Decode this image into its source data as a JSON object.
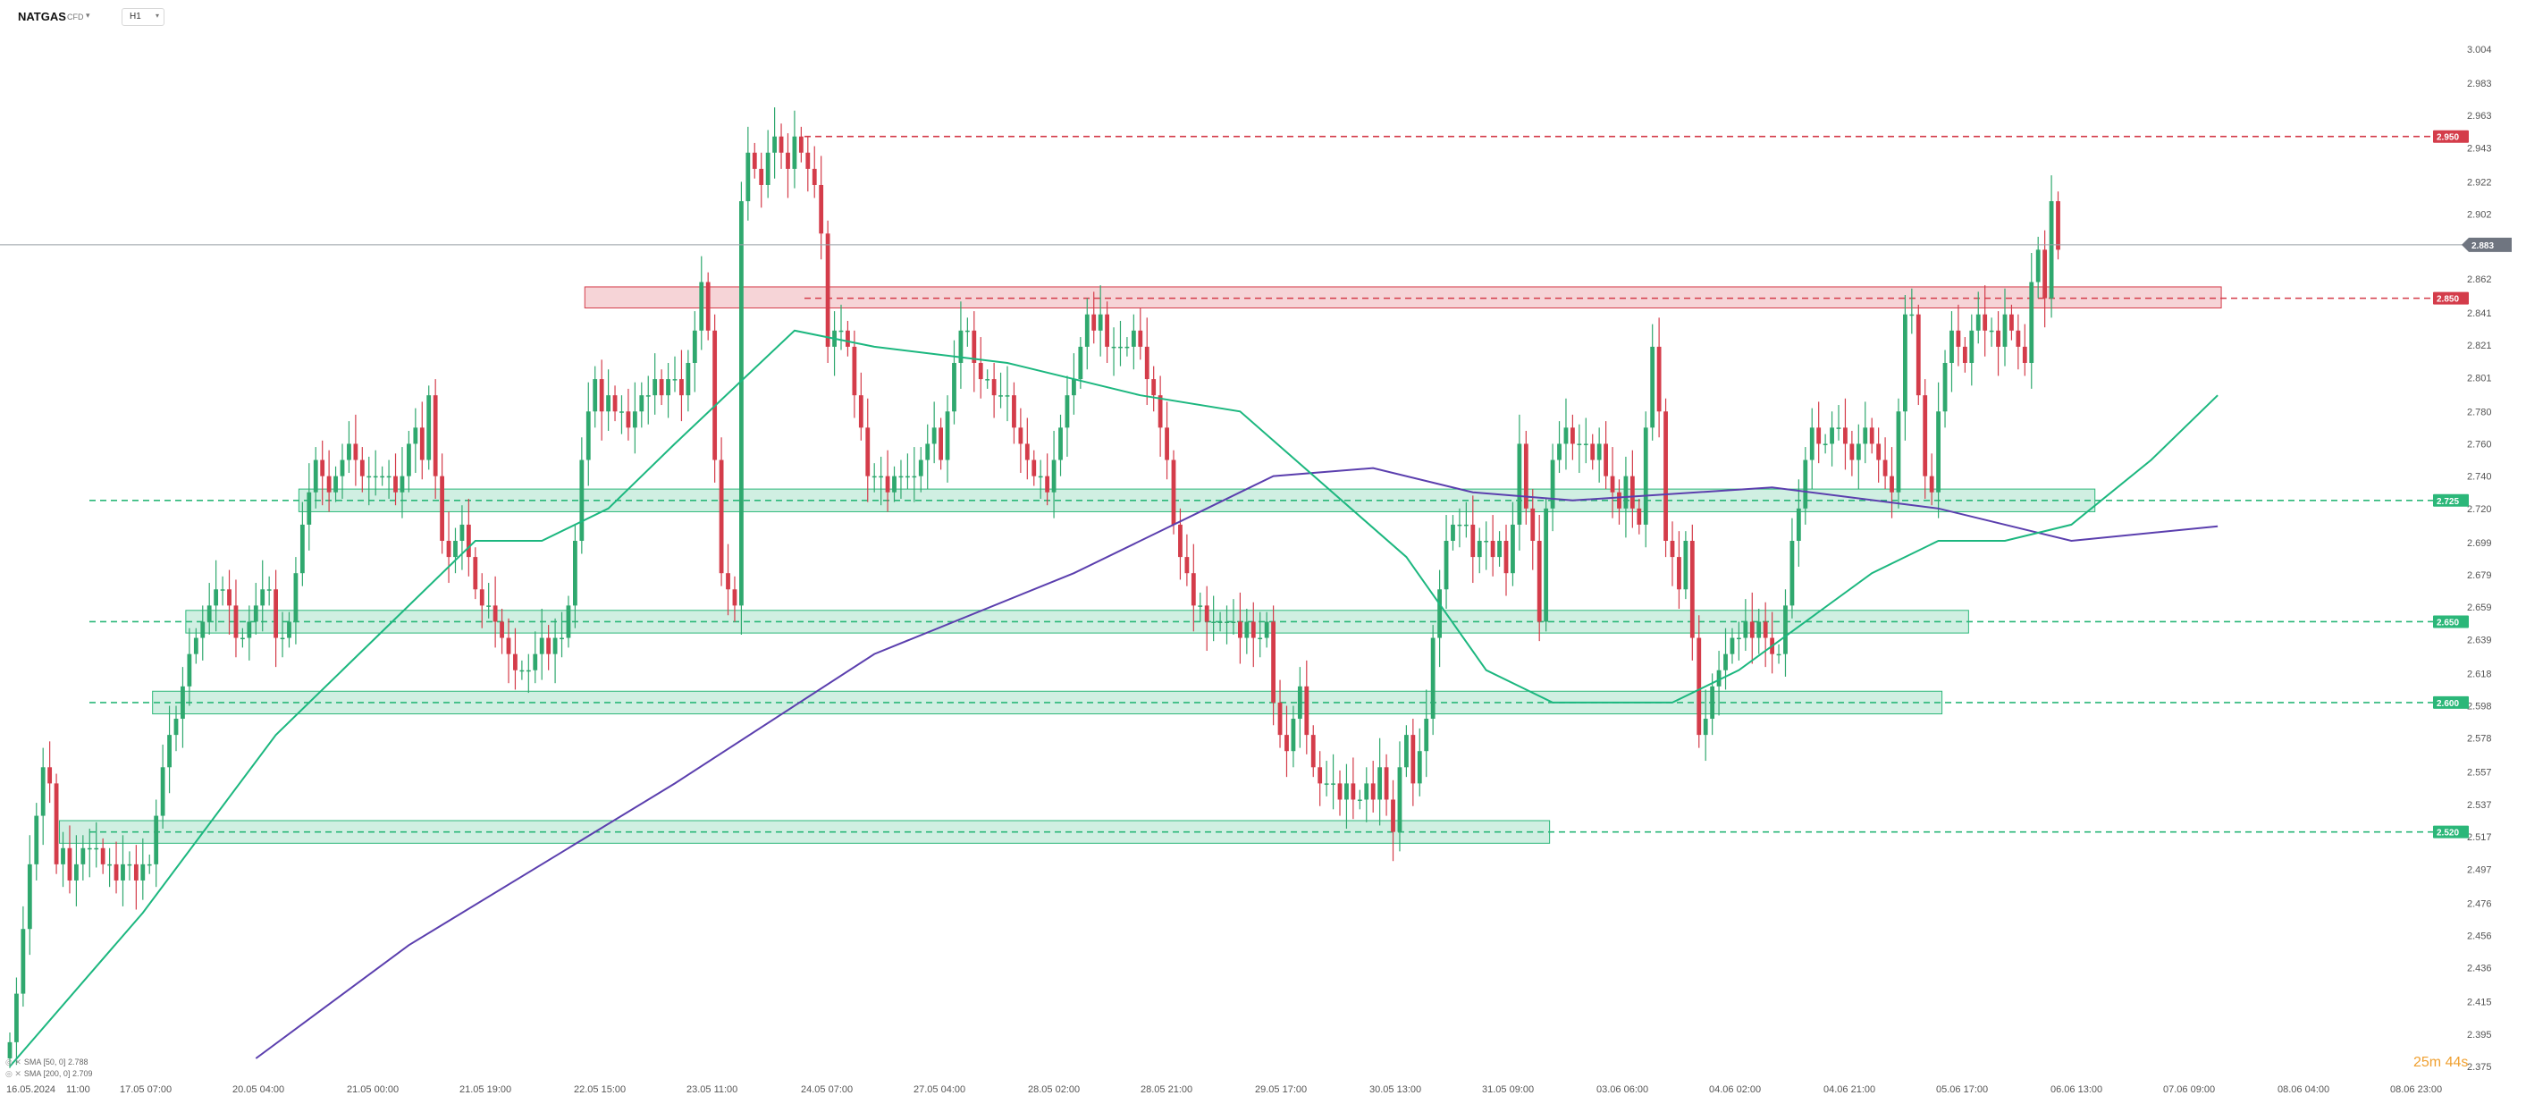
{
  "header": {
    "symbol": "NATGAS",
    "symbol_sub": "CFD",
    "timeframe": "H1"
  },
  "countdown": "25m 44s",
  "indicators": [
    {
      "name": "SMA [50, 0]",
      "value": "2.788"
    },
    {
      "name": "SMA [200, 0]",
      "value": "2.709"
    }
  ],
  "colors": {
    "bull": "#2fa86e",
    "bear": "#d43c4a",
    "resist": "#d43c4a",
    "support": "#2bb779",
    "sma50": "#1cb77f",
    "sma200": "#5b3fae",
    "last": "#6f7580"
  },
  "chart_data": {
    "type": "candlestick",
    "symbol": "NATGAS",
    "timeframe": "H1",
    "ylim": [
      2.375,
      3.004
    ],
    "y_ticks": [
      "3.004",
      "2.983",
      "2.963",
      "2.943",
      "2.922",
      "2.902",
      "2.882",
      "2.862",
      "2.841",
      "2.821",
      "2.801",
      "2.780",
      "2.760",
      "2.740",
      "2.720",
      "2.699",
      "2.679",
      "2.659",
      "2.639",
      "2.618",
      "2.598",
      "2.578",
      "2.557",
      "2.537",
      "2.517",
      "2.497",
      "2.476",
      "2.456",
      "2.436",
      "2.415",
      "2.395",
      "2.375"
    ],
    "x_ticks": [
      "16.05.2024",
      "11:00",
      "17.05 07:00",
      "20.05 04:00",
      "21.05 00:00",
      "21.05 19:00",
      "22.05 15:00",
      "23.05 11:00",
      "24.05 07:00",
      "27.05 04:00",
      "28.05 02:00",
      "28.05 21:00",
      "29.05 17:00",
      "30.05 13:00",
      "31.05 09:00",
      "03.06 06:00",
      "04.06 02:00",
      "04.06 21:00",
      "05.06 17:00",
      "06.06 13:00",
      "07.06 09:00",
      "08.06 04:00",
      "08.06 23:00"
    ],
    "last_price": "2.883",
    "levels": [
      {
        "label": "2.950",
        "value": 2.95,
        "type": "resistance"
      },
      {
        "label": "2.850",
        "value": 2.85,
        "type": "resistance"
      },
      {
        "label": "2.725",
        "value": 2.725,
        "type": "support"
      },
      {
        "label": "2.650",
        "value": 2.65,
        "type": "support"
      },
      {
        "label": "2.600",
        "value": 2.6,
        "type": "support"
      },
      {
        "label": "2.520",
        "value": 2.52,
        "type": "support"
      }
    ],
    "zones": [
      {
        "from_index": 87,
        "to_index": 332,
        "low": 2.844,
        "high": 2.857,
        "type": "resistance"
      },
      {
        "from_index": 44,
        "to_index": 313,
        "low": 2.718,
        "high": 2.732,
        "type": "support"
      },
      {
        "from_index": 27,
        "to_index": 294,
        "low": 2.643,
        "high": 2.657,
        "type": "support"
      },
      {
        "from_index": 22,
        "to_index": 290,
        "low": 2.593,
        "high": 2.607,
        "type": "support"
      },
      {
        "from_index": 8,
        "to_index": 231,
        "low": 2.513,
        "high": 2.527,
        "type": "support"
      }
    ],
    "closes": [
      2.39,
      2.42,
      2.46,
      2.5,
      2.53,
      2.56,
      2.55,
      2.5,
      2.51,
      2.49,
      2.5,
      2.51,
      2.51,
      2.51,
      2.5,
      2.5,
      2.49,
      2.5,
      2.5,
      2.49,
      2.5,
      2.5,
      2.53,
      2.56,
      2.58,
      2.59,
      2.61,
      2.63,
      2.64,
      2.65,
      2.66,
      2.67,
      2.67,
      2.66,
      2.64,
      2.64,
      2.65,
      2.66,
      2.67,
      2.67,
      2.64,
      2.64,
      2.65,
      2.68,
      2.71,
      2.73,
      2.75,
      2.74,
      2.73,
      2.74,
      2.75,
      2.76,
      2.75,
      2.74,
      2.74,
      2.74,
      2.74,
      2.74,
      2.73,
      2.74,
      2.76,
      2.77,
      2.75,
      2.79,
      2.74,
      2.7,
      2.69,
      2.7,
      2.71,
      2.69,
      2.67,
      2.66,
      2.66,
      2.65,
      2.64,
      2.63,
      2.62,
      2.62,
      2.62,
      2.63,
      2.64,
      2.63,
      2.64,
      2.64,
      2.66,
      2.7,
      2.75,
      2.78,
      2.8,
      2.78,
      2.79,
      2.78,
      2.78,
      2.77,
      2.78,
      2.79,
      2.79,
      2.8,
      2.79,
      2.8,
      2.8,
      2.79,
      2.81,
      2.83,
      2.86,
      2.83,
      2.75,
      2.68,
      2.67,
      2.66,
      2.91,
      2.94,
      2.93,
      2.92,
      2.94,
      2.95,
      2.94,
      2.93,
      2.95,
      2.94,
      2.93,
      2.92,
      2.89,
      2.82,
      2.83,
      2.83,
      2.82,
      2.79,
      2.77,
      2.74,
      2.74,
      2.74,
      2.73,
      2.74,
      2.74,
      2.74,
      2.74,
      2.75,
      2.76,
      2.77,
      2.75,
      2.78,
      2.81,
      2.83,
      2.83,
      2.81,
      2.8,
      2.8,
      2.79,
      2.79,
      2.79,
      2.77,
      2.76,
      2.75,
      2.74,
      2.74,
      2.73,
      2.75,
      2.77,
      2.79,
      2.8,
      2.82,
      2.84,
      2.83,
      2.84,
      2.82,
      2.82,
      2.82,
      2.82,
      2.83,
      2.82,
      2.8,
      2.79,
      2.77,
      2.75,
      2.71,
      2.69,
      2.68,
      2.66,
      2.66,
      2.65,
      2.65,
      2.65,
      2.65,
      2.65,
      2.64,
      2.65,
      2.64,
      2.64,
      2.65,
      2.6,
      2.58,
      2.57,
      2.59,
      2.61,
      2.58,
      2.56,
      2.55,
      2.55,
      2.55,
      2.54,
      2.55,
      2.54,
      2.54,
      2.55,
      2.54,
      2.56,
      2.54,
      2.52,
      2.56,
      2.58,
      2.55,
      2.57,
      2.59,
      2.64,
      2.67,
      2.7,
      2.71,
      2.71,
      2.71,
      2.69,
      2.7,
      2.7,
      2.69,
      2.7,
      2.68,
      2.71,
      2.76,
      2.72,
      2.7,
      2.65,
      2.72,
      2.75,
      2.76,
      2.77,
      2.76,
      2.76,
      2.76,
      2.75,
      2.76,
      2.74,
      2.73,
      2.72,
      2.74,
      2.72,
      2.71,
      2.77,
      2.82,
      2.78,
      2.7,
      2.69,
      2.67,
      2.7,
      2.64,
      2.58,
      2.59,
      2.61,
      2.62,
      2.63,
      2.64,
      2.64,
      2.65,
      2.64,
      2.65,
      2.64,
      2.63,
      2.63,
      2.66,
      2.7,
      2.72,
      2.75,
      2.77,
      2.76,
      2.76,
      2.77,
      2.77,
      2.76,
      2.75,
      2.76,
      2.77,
      2.76,
      2.75,
      2.74,
      2.73,
      2.78,
      2.84,
      2.84,
      2.79,
      2.74,
      2.73,
      2.78,
      2.81,
      2.83,
      2.82,
      2.81,
      2.83,
      2.84,
      2.83,
      2.83,
      2.82,
      2.84,
      2.83,
      2.82,
      2.81,
      2.86,
      2.88,
      2.85,
      2.91,
      2.88
    ],
    "sma50": [
      [
        0,
        2.375
      ],
      [
        20,
        2.47
      ],
      [
        40,
        2.58
      ],
      [
        60,
        2.66
      ],
      [
        70,
        2.7
      ],
      [
        80,
        2.7
      ],
      [
        90,
        2.72
      ],
      [
        100,
        2.76
      ],
      [
        118,
        2.83
      ],
      [
        130,
        2.82
      ],
      [
        150,
        2.81
      ],
      [
        170,
        2.79
      ],
      [
        185,
        2.78
      ],
      [
        210,
        2.69
      ],
      [
        222,
        2.62
      ],
      [
        232,
        2.6
      ],
      [
        250,
        2.6
      ],
      [
        260,
        2.62
      ],
      [
        280,
        2.68
      ],
      [
        290,
        2.7
      ],
      [
        300,
        2.7
      ],
      [
        310,
        2.71
      ],
      [
        322,
        2.75
      ],
      [
        332,
        2.79
      ]
    ],
    "sma200": [
      [
        37,
        2.38
      ],
      [
        60,
        2.45
      ],
      [
        100,
        2.55
      ],
      [
        130,
        2.63
      ],
      [
        160,
        2.68
      ],
      [
        180,
        2.72
      ],
      [
        190,
        2.74
      ],
      [
        205,
        2.745
      ],
      [
        220,
        2.73
      ],
      [
        235,
        2.725
      ],
      [
        265,
        2.733
      ],
      [
        290,
        2.72
      ],
      [
        310,
        2.7
      ],
      [
        332,
        2.709
      ]
    ]
  }
}
